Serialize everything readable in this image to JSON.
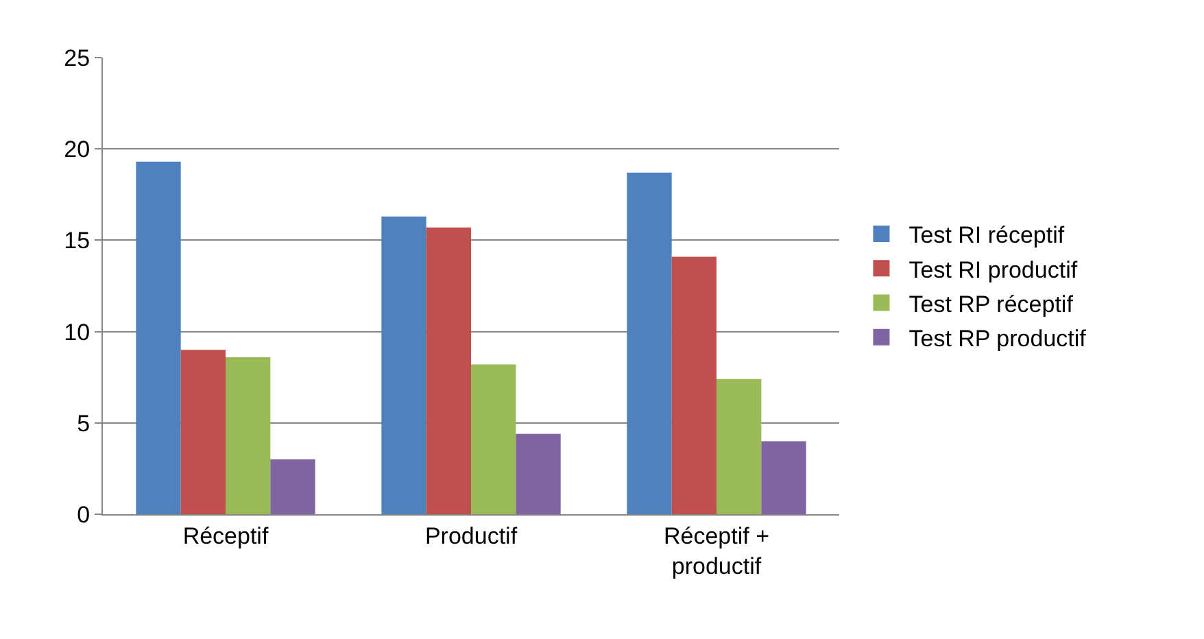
{
  "chart_data": {
    "type": "bar",
    "categories": [
      "Réceptif",
      "Productif",
      "Réceptif + productif"
    ],
    "series": [
      {
        "name": "Test RI réceptif",
        "color": "#4f81bd",
        "values": [
          19.3,
          16.3,
          18.7
        ]
      },
      {
        "name": "Test RI productif",
        "color": "#c0504d",
        "values": [
          9.0,
          15.7,
          14.1
        ]
      },
      {
        "name": "Test RP réceptif",
        "color": "#9bbb59",
        "values": [
          8.6,
          8.2,
          7.4
        ]
      },
      {
        "name": "Test RP productif",
        "color": "#8064a2",
        "values": [
          3.0,
          4.4,
          4.0
        ]
      }
    ],
    "ylim": [
      0,
      25
    ],
    "yticks": [
      0,
      5,
      10,
      15,
      20,
      25
    ],
    "grid": "y",
    "legend": "right"
  }
}
